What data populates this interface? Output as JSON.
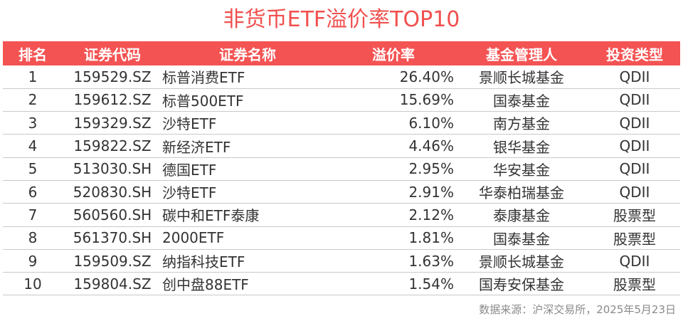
{
  "title": "非货币ETF溢价率TOP10",
  "source": "数据来源：沪深交易所，2025年5月23日",
  "chart_data": {
    "type": "table",
    "title": "非货币ETF溢价率TOP10",
    "columns": [
      "排名",
      "证券代码",
      "证券名称",
      "溢价率",
      "基金管理人",
      "投资类型"
    ],
    "rows": [
      [
        "1",
        "159529.SZ",
        "标普消费ETF",
        "26.40%",
        "景顺长城基金",
        "QDII"
      ],
      [
        "2",
        "159612.SZ",
        "标普500ETF",
        "15.69%",
        "国泰基金",
        "QDII"
      ],
      [
        "3",
        "159329.SZ",
        "沙特ETF",
        "6.10%",
        "南方基金",
        "QDII"
      ],
      [
        "4",
        "159822.SZ",
        "新经济ETF",
        "4.46%",
        "银华基金",
        "QDII"
      ],
      [
        "5",
        "513030.SH",
        "德国ETF",
        "2.95%",
        "华安基金",
        "QDII"
      ],
      [
        "6",
        "520830.SH",
        "沙特ETF",
        "2.91%",
        "华泰柏瑞基金",
        "QDII"
      ],
      [
        "7",
        "560560.SH",
        "碳中和ETF泰康",
        "2.12%",
        "泰康基金",
        "股票型"
      ],
      [
        "8",
        "561370.SH",
        "2000ETF",
        "1.81%",
        "国泰基金",
        "股票型"
      ],
      [
        "9",
        "159509.SZ",
        "纳指科技ETF",
        "1.63%",
        "景顺长城基金",
        "QDII"
      ],
      [
        "10",
        "159804.SZ",
        "创中盘88ETF",
        "1.54%",
        "国寿安保基金",
        "股票型"
      ]
    ],
    "colors": {
      "title": "#f0504e",
      "header_bg": "#f45353",
      "header_text": "#ffffff",
      "row_divider": "#c9c9c9"
    }
  }
}
